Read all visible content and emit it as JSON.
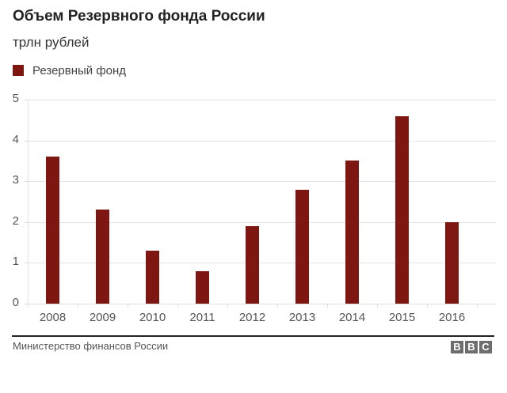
{
  "header": {
    "title": "Объем Резервного фонда России",
    "subtitle": "трлн рублей"
  },
  "legend": {
    "items": [
      {
        "label": "Резервный фонд",
        "color": "#7e1611"
      }
    ]
  },
  "footer": {
    "source": "Министерство финансов России",
    "logo": [
      "B",
      "B",
      "C"
    ]
  },
  "colors": {
    "bar": "#7e1611",
    "gridline": "#e4e4e4",
    "footer_rule": "#222222",
    "logo_block": "#6e6e6e"
  },
  "chart_data": {
    "type": "bar",
    "title": "Объем Резервного фонда России",
    "subtitle": "трлн рублей",
    "xlabel": "",
    "ylabel": "трлн рублей",
    "categories": [
      "2008",
      "2009",
      "2010",
      "2011",
      "2012",
      "2013",
      "2014",
      "2015",
      "2016"
    ],
    "series": [
      {
        "name": "Резервный фонд",
        "values": [
          3.6,
          2.3,
          1.3,
          0.8,
          1.9,
          2.8,
          3.5,
          4.6,
          2.0
        ]
      }
    ],
    "values": [
      3.6,
      2.3,
      1.3,
      0.8,
      1.9,
      2.8,
      3.5,
      4.6,
      2.0
    ],
    "ylim": [
      0,
      5
    ],
    "yticks": [
      "0",
      "1",
      "2",
      "3",
      "4",
      "5"
    ],
    "grid": true,
    "legend_position": "top-left",
    "source": "Министерство финансов России"
  }
}
